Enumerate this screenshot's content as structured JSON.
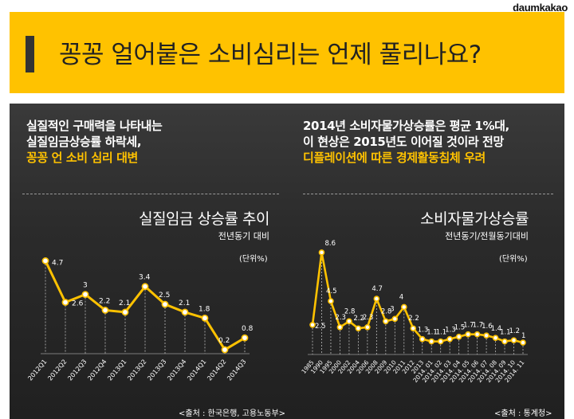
{
  "brand": "daumkakao",
  "headline": "꽁꽁 얼어붙은 소비심리는 언제 풀리나요?",
  "left": {
    "lines": [
      "실질적인 구매력을 나타내는",
      "실질임금상승률 하락세,",
      "꽁꽁 언 소비 심리 대변"
    ],
    "source": "<출처 : 한국은행, 고용노동부>"
  },
  "right": {
    "lines": [
      "2014년 소비자물가상승률은 평균 1%대,",
      "이 현상은 2015년도 이어질 것이라 전망",
      "디플레이션에 따른 경제활동침체 우려"
    ],
    "source": "<출처 : 통계청>"
  },
  "colors": {
    "accent": "#ffc200",
    "panel": "#2b2b2b",
    "text": "#ffffff"
  },
  "chart_data": [
    {
      "type": "line",
      "title": "실질임금 상승률 추이",
      "subtitle": "전년동기 대비",
      "unit": "(단위%)",
      "categories": [
        "2012Q1",
        "2012Q2",
        "2012Q3",
        "2012Q4",
        "2013Q1",
        "2013Q2",
        "2013Q3",
        "2013Q4",
        "2014Q1",
        "2014Q2",
        "2014Q3"
      ],
      "values": [
        4.7,
        2.6,
        3,
        2.2,
        2.1,
        3.4,
        2.5,
        2.1,
        1.8,
        0.2,
        0.8
      ],
      "labels": [
        "4.7",
        "2.6",
        "3",
        "2.2",
        "2.1",
        "3.4",
        "2.5",
        "2.1",
        "1.8",
        "0.2",
        "0.8"
      ],
      "ylim": [
        0,
        5
      ],
      "grid": "vertical-dashed"
    },
    {
      "type": "line",
      "title": "소비자물가상승률",
      "subtitle": "전년동기/전월동기대비",
      "unit": "(단위%)",
      "categories": [
        "1985",
        "1990",
        "1995",
        "2000",
        "2002",
        "2004",
        "2006",
        "2008",
        "2009",
        "2010",
        "2011",
        "2012",
        "2013",
        "2014. 01",
        "2014. 02",
        "2014. 03",
        "2014. 04",
        "2014. 05",
        "2014. 06",
        "2014. 07",
        "2014. 08",
        "2014. 09",
        "2014. 10",
        "2014. 11"
      ],
      "values": [
        2.5,
        8.6,
        4.5,
        2.3,
        2.8,
        2.2,
        2.3,
        4.7,
        2.8,
        3,
        4,
        2.2,
        1.3,
        1.1,
        1.1,
        1.3,
        1.5,
        1.7,
        1.7,
        1.6,
        1.4,
        1.1,
        1.2,
        1
      ],
      "labels": [
        "2.5",
        "8.6",
        "4.5",
        "2.3",
        "2.8",
        "2.2",
        "2.3",
        "4.7",
        "2.8",
        "3",
        "4",
        "2.2",
        "1.3",
        "1.1",
        "1.1",
        "1.3",
        "1.5",
        "1.7",
        "1.7",
        "1.6",
        "1.4",
        "1.1",
        "1.2",
        "1"
      ],
      "ylim": [
        0,
        9
      ],
      "grid": "vertical-dashed"
    }
  ]
}
